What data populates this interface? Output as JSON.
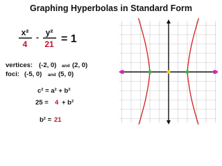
{
  "header": {
    "title": "Graphing Hyperbolas in Standard Form"
  },
  "equation": {
    "x_numerator": "x²",
    "x_denominator": "4",
    "minus": "-",
    "y_numerator": "y²",
    "y_denominator": "21",
    "equals": "= 1"
  },
  "vertices": {
    "label": "vertices:",
    "first": "(-2, 0)",
    "joiner": "and",
    "second": "(2, 0)"
  },
  "foci": {
    "label": "foci:",
    "first": "(-5, 0)",
    "joiner": "and",
    "second": "(5, 0)"
  },
  "steps": {
    "formula": "c² = a² + b²",
    "substituted": {
      "left": "25 =",
      "a_squared": "4",
      "rest": "+ b²"
    },
    "result": {
      "left": "b² =",
      "value": "21"
    }
  }
}
